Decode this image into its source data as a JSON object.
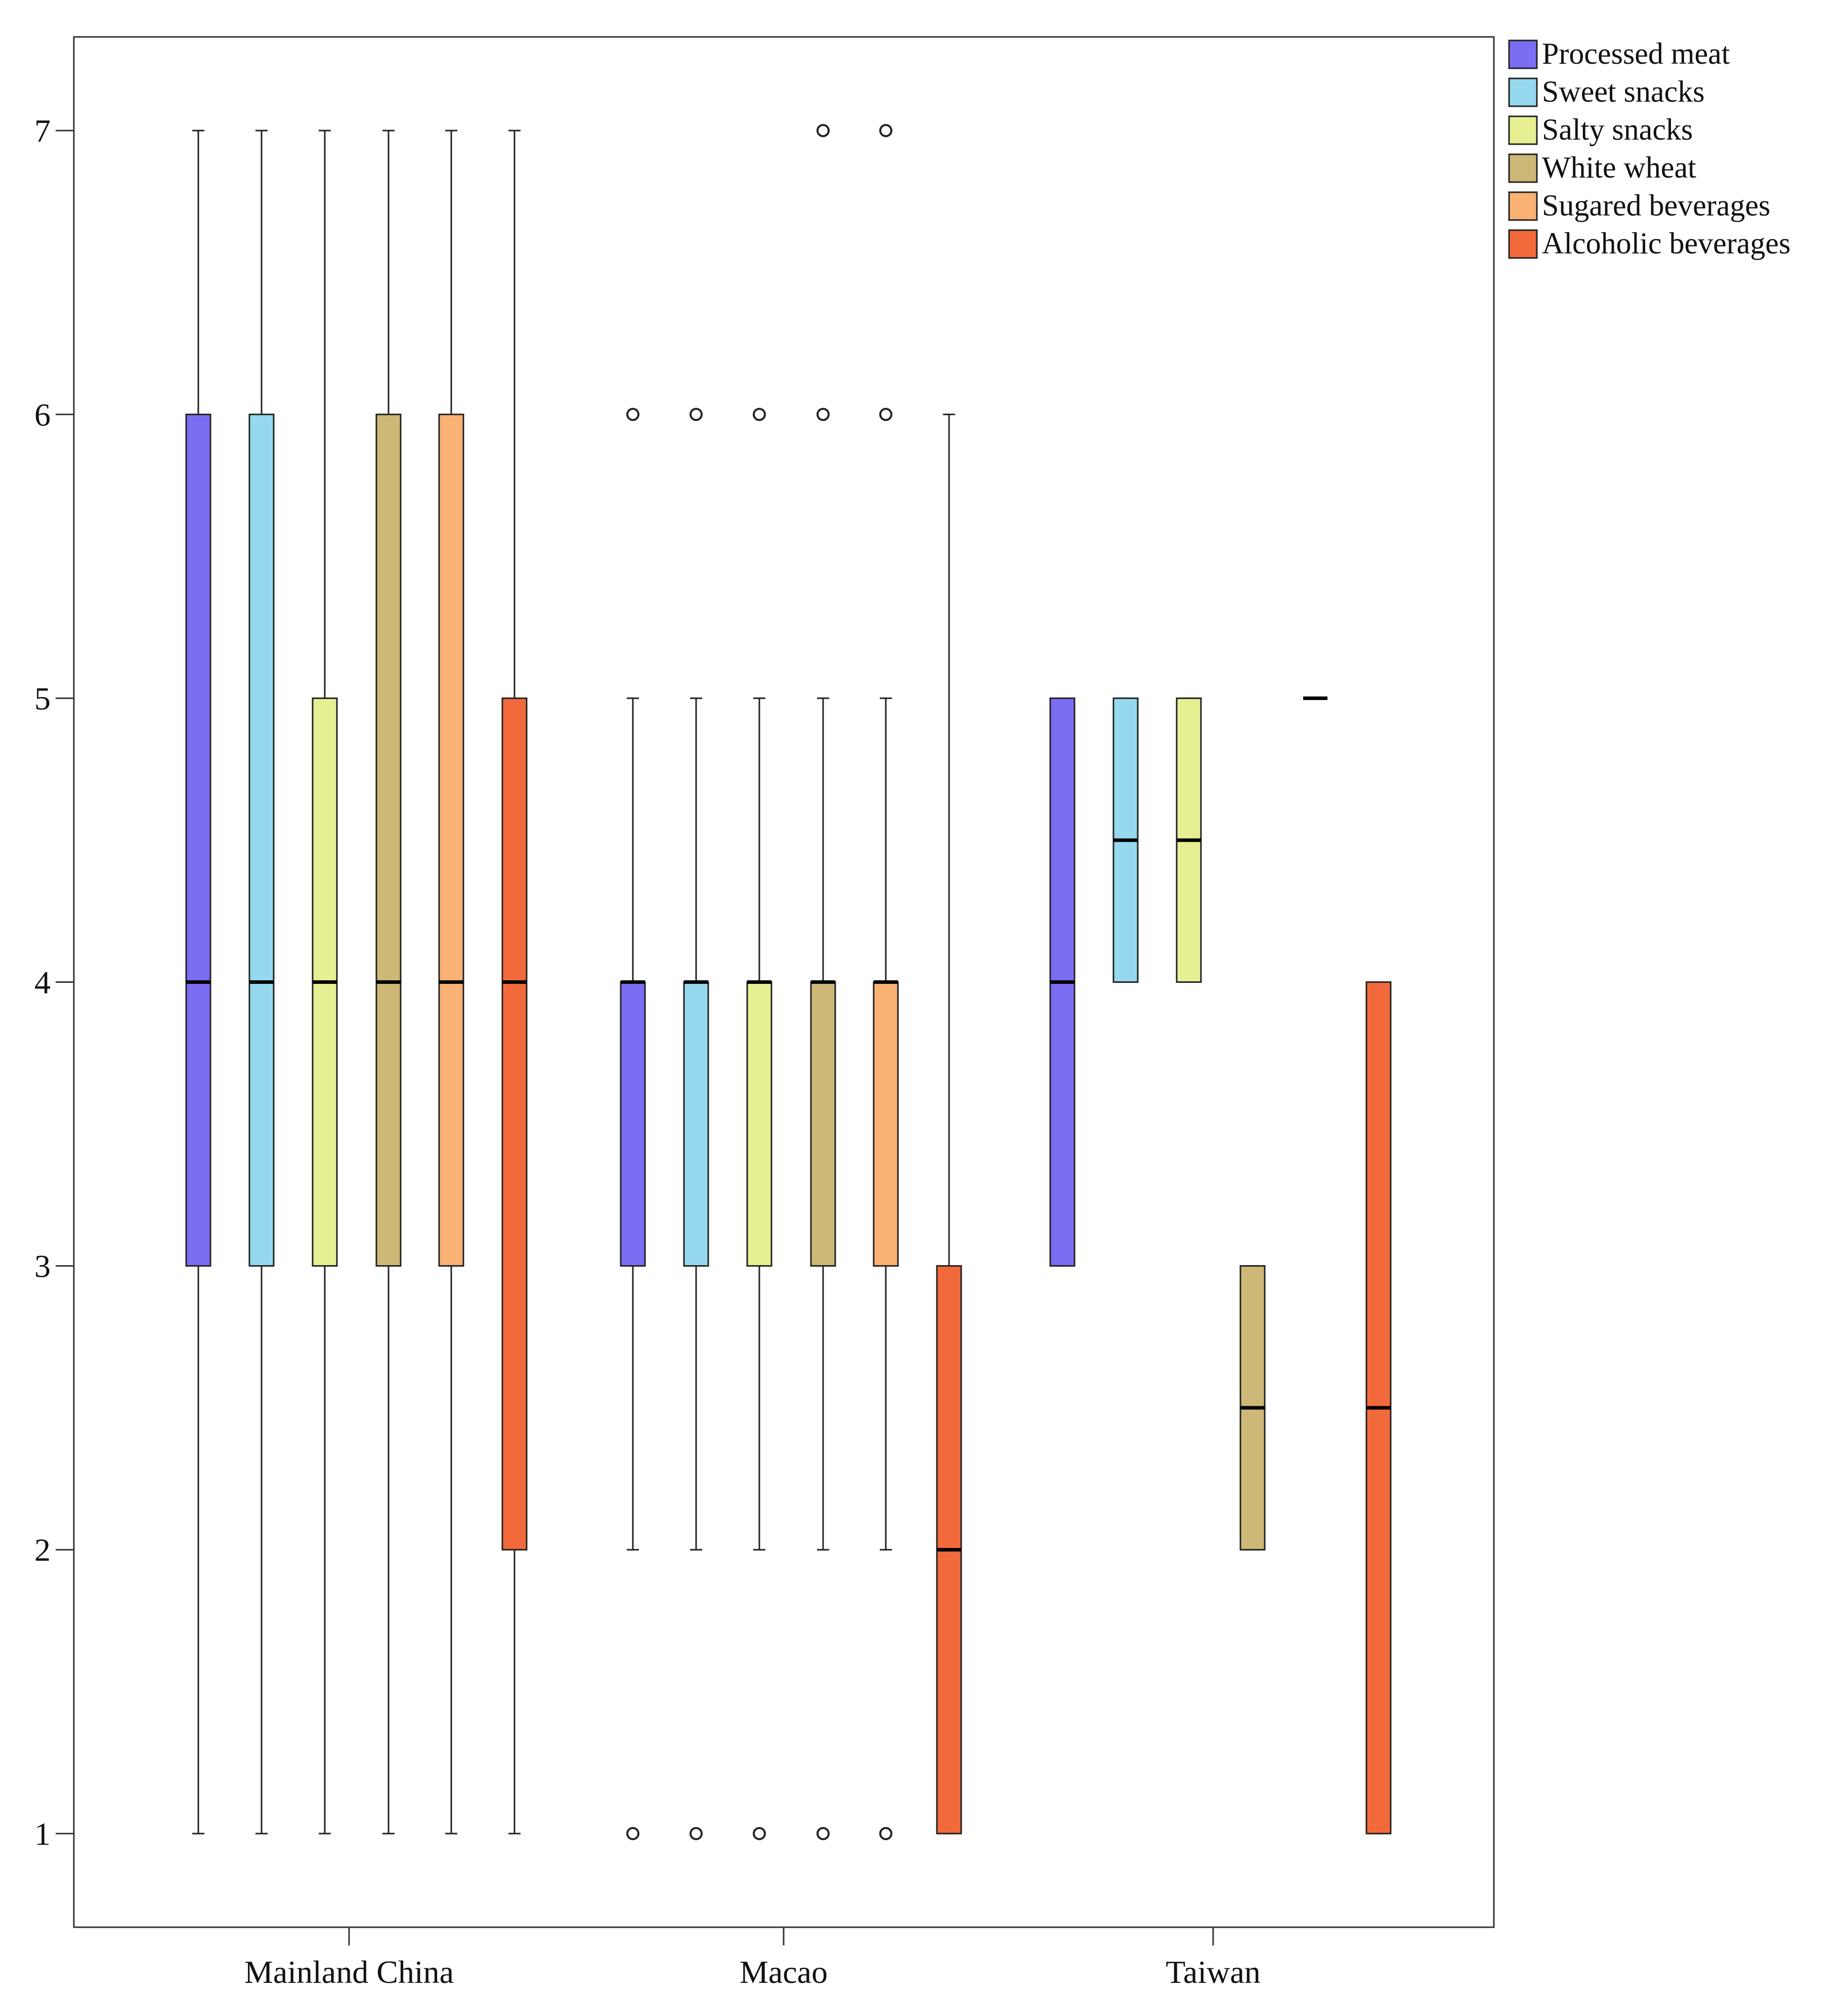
{
  "chart_data": {
    "type": "boxplot",
    "title": "",
    "xlabel": "",
    "ylabel": "",
    "ylim": [
      0.67,
      7.33
    ],
    "yticks": [
      1,
      2,
      3,
      4,
      5,
      6,
      7
    ],
    "ytick_labels": [
      "1",
      "2",
      "3",
      "4",
      "5",
      "6",
      "7"
    ],
    "grid": false,
    "legend_position": "top-right, outside plot area",
    "categories": [
      "Mainland China",
      "Macao",
      "Taiwan"
    ],
    "series": [
      {
        "name": "Processed meat",
        "color": "#7B6EF3",
        "boxes": [
          {
            "category": "Mainland China",
            "min": 1,
            "q1": 3,
            "median": 4,
            "q3": 6,
            "max": 7,
            "outliers": []
          },
          {
            "category": "Macao",
            "min": 2,
            "q1": 3,
            "median": 4,
            "q3": 4,
            "max": 5,
            "outliers": [
              1,
              6
            ]
          },
          {
            "category": "Taiwan",
            "min": 3,
            "q1": 3,
            "median": 4,
            "q3": 5,
            "max": 5,
            "outliers": []
          }
        ]
      },
      {
        "name": "Sweet snacks",
        "color": "#96D9EE",
        "boxes": [
          {
            "category": "Mainland China",
            "min": 1,
            "q1": 3,
            "median": 4,
            "q3": 6,
            "max": 7,
            "outliers": []
          },
          {
            "category": "Macao",
            "min": 2,
            "q1": 3,
            "median": 4,
            "q3": 4,
            "max": 5,
            "outliers": [
              1,
              6
            ]
          },
          {
            "category": "Taiwan",
            "min": 4,
            "q1": 4,
            "median": 4.5,
            "q3": 5,
            "max": 5,
            "outliers": []
          }
        ]
      },
      {
        "name": "Salty snacks",
        "color": "#E6EF92",
        "boxes": [
          {
            "category": "Mainland China",
            "min": 1,
            "q1": 3,
            "median": 4,
            "q3": 5,
            "max": 7,
            "outliers": []
          },
          {
            "category": "Macao",
            "min": 2,
            "q1": 3,
            "median": 4,
            "q3": 4,
            "max": 5,
            "outliers": [
              1,
              6
            ]
          },
          {
            "category": "Taiwan",
            "min": 4,
            "q1": 4,
            "median": 4.5,
            "q3": 5,
            "max": 5,
            "outliers": []
          }
        ]
      },
      {
        "name": "White wheat",
        "color": "#CDB877",
        "boxes": [
          {
            "category": "Mainland China",
            "min": 1,
            "q1": 3,
            "median": 4,
            "q3": 6,
            "max": 7,
            "outliers": []
          },
          {
            "category": "Macao",
            "min": 2,
            "q1": 3,
            "median": 4,
            "q3": 4,
            "max": 5,
            "outliers": [
              1,
              6,
              7
            ]
          },
          {
            "category": "Taiwan",
            "min": 2,
            "q1": 2,
            "median": 2.5,
            "q3": 3,
            "max": 3,
            "outliers": []
          }
        ]
      },
      {
        "name": "Sugared beverages",
        "color": "#F9B174",
        "boxes": [
          {
            "category": "Mainland China",
            "min": 1,
            "q1": 3,
            "median": 4,
            "q3": 6,
            "max": 7,
            "outliers": []
          },
          {
            "category": "Macao",
            "min": 2,
            "q1": 3,
            "median": 4,
            "q3": 4,
            "max": 5,
            "outliers": [
              1,
              6,
              7
            ]
          },
          {
            "category": "Taiwan",
            "min": 5,
            "q1": 5,
            "median": 5,
            "q3": 5,
            "max": 5,
            "outliers": []
          }
        ]
      },
      {
        "name": "Alcoholic beverages",
        "color": "#F26A3B",
        "boxes": [
          {
            "category": "Mainland China",
            "min": 1,
            "q1": 2,
            "median": 4,
            "q3": 5,
            "max": 7,
            "outliers": []
          },
          {
            "category": "Macao",
            "min": 1,
            "q1": 1,
            "median": 2,
            "q3": 3,
            "max": 6,
            "outliers": []
          },
          {
            "category": "Taiwan",
            "min": 1,
            "q1": 1,
            "median": 2.5,
            "q3": 4,
            "max": 4,
            "outliers": []
          }
        ]
      }
    ]
  }
}
